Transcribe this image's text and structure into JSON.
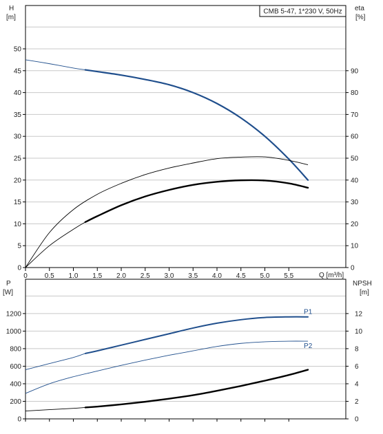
{
  "chart_data": [
    {
      "type": "line",
      "title": "",
      "legend_box": "CMB 5-47, 1*230 V, 50Hz",
      "xlabel": "Q [m³/h]",
      "ylabel": "H",
      "ylabel_unit": "[m]",
      "y2label": "eta",
      "y2label_unit": "[%]",
      "xlim": [
        0,
        6.6
      ],
      "ylim": [
        0,
        55
      ],
      "y2lim": [
        0,
        110
      ],
      "xticks": [
        "0",
        "0.5",
        "1.0",
        "1.5",
        "2.0",
        "2.5",
        "3.0",
        "3.5",
        "4.0",
        "4.5",
        "5.0",
        "5.5"
      ],
      "yticks": [
        "0",
        "5",
        "10",
        "15",
        "20",
        "25",
        "30",
        "35",
        "40",
        "45",
        "50"
      ],
      "y2ticks": [
        "0",
        "10",
        "20",
        "30",
        "40",
        "50",
        "60",
        "70",
        "80",
        "90"
      ],
      "grid": true,
      "series": [
        {
          "axis": "left",
          "color": "#1f4e8c",
          "points": [
            [
              0,
              47.5
            ],
            [
              0.5,
              46.6
            ],
            [
              1.0,
              45.6
            ],
            [
              1.25,
              45.2
            ],
            [
              1.5,
              44.8
            ],
            [
              2.0,
              44.0
            ],
            [
              2.5,
              43.0
            ],
            [
              3.0,
              41.8
            ],
            [
              3.5,
              40.0
            ],
            [
              4.0,
              37.5
            ],
            [
              4.5,
              34.2
            ],
            [
              5.0,
              30.0
            ],
            [
              5.5,
              24.8
            ],
            [
              5.9,
              20.0
            ]
          ]
        },
        {
          "axis": "right",
          "color": "#000000",
          "points": [
            [
              0,
              0
            ],
            [
              0.5,
              16
            ],
            [
              1.0,
              26.5
            ],
            [
              1.5,
              33.5
            ],
            [
              2.0,
              38.5
            ],
            [
              2.5,
              42.5
            ],
            [
              3.0,
              45.5
            ],
            [
              3.5,
              47.8
            ],
            [
              4.0,
              49.8
            ],
            [
              4.5,
              50.5
            ],
            [
              5.0,
              50.6
            ],
            [
              5.5,
              49.0
            ],
            [
              5.9,
              47.0
            ]
          ]
        },
        {
          "axis": "right",
          "color": "#000000",
          "points": [
            [
              0,
              0
            ],
            [
              0.5,
              10
            ],
            [
              1.0,
              17.5
            ],
            [
              1.25,
              20.8
            ],
            [
              1.5,
              23.5
            ],
            [
              2.0,
              28.5
            ],
            [
              2.5,
              32.5
            ],
            [
              3.0,
              35.5
            ],
            [
              3.5,
              37.8
            ],
            [
              4.0,
              39.2
            ],
            [
              4.5,
              39.9
            ],
            [
              5.0,
              39.8
            ],
            [
              5.5,
              38.5
            ],
            [
              5.9,
              36.5
            ]
          ]
        }
      ]
    },
    {
      "type": "line",
      "title": "",
      "xlabel": "",
      "ylabel": "P",
      "ylabel_unit": "[W]",
      "y2label": "NPSH",
      "y2label_unit": "[m]",
      "xlim": [
        0,
        6.6
      ],
      "ylim": [
        0,
        1400
      ],
      "y2lim": [
        0,
        14
      ],
      "yticks": [
        "0",
        "200",
        "400",
        "600",
        "800",
        "1000",
        "1200"
      ],
      "y2ticks": [
        "0",
        "2",
        "4",
        "6",
        "8",
        "10",
        "12"
      ],
      "grid": true,
      "series": [
        {
          "name": "P1",
          "axis": "left",
          "color": "#1f4e8c",
          "points": [
            [
              0,
              560
            ],
            [
              0.5,
              630
            ],
            [
              1.0,
              700
            ],
            [
              1.25,
              745
            ],
            [
              1.5,
              775
            ],
            [
              2.0,
              840
            ],
            [
              2.5,
              905
            ],
            [
              3.0,
              970
            ],
            [
              3.5,
              1035
            ],
            [
              4.0,
              1090
            ],
            [
              4.5,
              1130
            ],
            [
              5.0,
              1155
            ],
            [
              5.5,
              1162
            ],
            [
              5.9,
              1162
            ]
          ]
        },
        {
          "name": "P2",
          "axis": "left",
          "color": "#1f4e8c",
          "points": [
            [
              0,
              290
            ],
            [
              0.5,
              400
            ],
            [
              1.0,
              480
            ],
            [
              1.5,
              545
            ],
            [
              2.0,
              610
            ],
            [
              2.5,
              670
            ],
            [
              3.0,
              725
            ],
            [
              3.5,
              775
            ],
            [
              4.0,
              825
            ],
            [
              4.5,
              860
            ],
            [
              5.0,
              878
            ],
            [
              5.5,
              885
            ],
            [
              5.9,
              885
            ]
          ]
        },
        {
          "axis": "right",
          "color": "#000000",
          "points": [
            [
              0,
              0.9
            ],
            [
              0.5,
              1.05
            ],
            [
              1.0,
              1.2
            ],
            [
              1.25,
              1.3
            ],
            [
              1.5,
              1.4
            ],
            [
              2.0,
              1.65
            ],
            [
              2.5,
              1.95
            ],
            [
              3.0,
              2.3
            ],
            [
              3.5,
              2.7
            ],
            [
              4.0,
              3.2
            ],
            [
              4.5,
              3.75
            ],
            [
              5.0,
              4.35
            ],
            [
              5.5,
              5.0
            ],
            [
              5.9,
              5.6
            ]
          ]
        }
      ]
    }
  ]
}
